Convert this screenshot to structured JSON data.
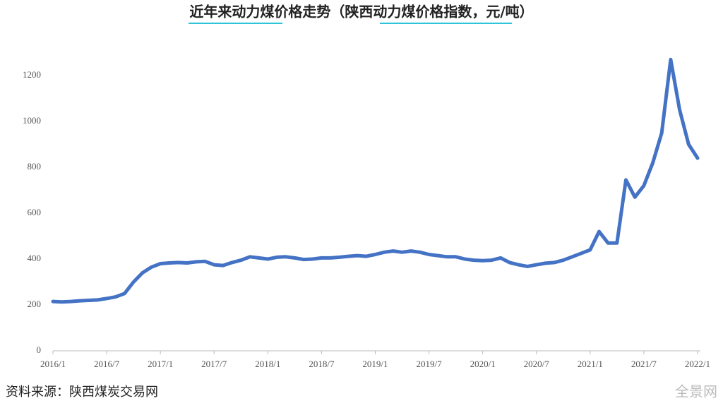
{
  "chart_data": {
    "type": "line",
    "title": "近年来动力煤价格走势（陕西动力煤价格指数，元/吨）",
    "categories": [
      "2016/1",
      null,
      null,
      null,
      null,
      null,
      "2016/7",
      null,
      null,
      null,
      null,
      null,
      "2017/1",
      null,
      null,
      null,
      null,
      null,
      "2017/7",
      null,
      null,
      null,
      null,
      null,
      "2018/1",
      null,
      null,
      null,
      null,
      null,
      "2018/7",
      null,
      null,
      null,
      null,
      null,
      "2019/1",
      null,
      null,
      null,
      null,
      null,
      "2019/7",
      null,
      null,
      null,
      null,
      null,
      "2020/1",
      null,
      null,
      null,
      null,
      null,
      "2020/7",
      null,
      null,
      null,
      null,
      null,
      "2021/1",
      null,
      null,
      null,
      null,
      null,
      "2021/7",
      null,
      null,
      null,
      null,
      null,
      "2022/1"
    ],
    "series": [
      {
        "color": "#4472c4",
        "values": [
          215,
          213,
          215,
          218,
          220,
          222,
          228,
          235,
          250,
          300,
          340,
          365,
          380,
          383,
          385,
          383,
          388,
          390,
          375,
          372,
          385,
          395,
          410,
          405,
          400,
          408,
          410,
          405,
          398,
          400,
          405,
          405,
          408,
          412,
          415,
          412,
          420,
          430,
          435,
          430,
          435,
          430,
          420,
          415,
          410,
          410,
          400,
          395,
          393,
          395,
          405,
          385,
          375,
          368,
          375,
          382,
          385,
          395,
          410,
          425,
          440,
          520,
          470,
          470,
          745,
          670,
          720,
          820,
          950,
          1270,
          1050,
          900,
          840
        ]
      }
    ],
    "ylim": [
      0,
      1200
    ],
    "yticks": [
      0,
      200,
      400,
      600,
      800,
      1000,
      1200
    ]
  },
  "source": "资料来源：陕西煤炭交易网",
  "watermark": "全景网"
}
